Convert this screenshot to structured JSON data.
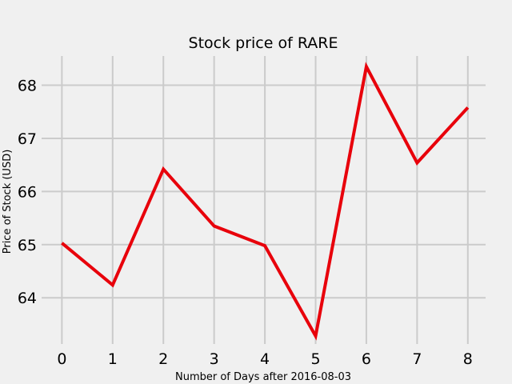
{
  "chart_data": {
    "type": "line",
    "title": "Stock price of RARE",
    "xlabel": "Number of Days after 2016-08-03",
    "ylabel": "Price of Stock (USD)",
    "x": [
      0,
      1,
      2,
      3,
      4,
      5,
      6,
      7,
      8
    ],
    "series": [
      {
        "values": [
          65.03,
          64.24,
          66.42,
          65.35,
          64.98,
          63.28,
          68.35,
          66.54,
          67.58
        ],
        "color": "#e8000b"
      }
    ],
    "xlim": [
      -0.4,
      8.35
    ],
    "ylim": [
      63.13,
      68.55
    ],
    "xticks": [
      0,
      1,
      2,
      3,
      4,
      5,
      6,
      7,
      8
    ],
    "yticks": [
      64,
      65,
      66,
      67,
      68
    ],
    "grid": true,
    "background_color": "#f0f0f0",
    "grid_color": "#cbcbcb"
  }
}
